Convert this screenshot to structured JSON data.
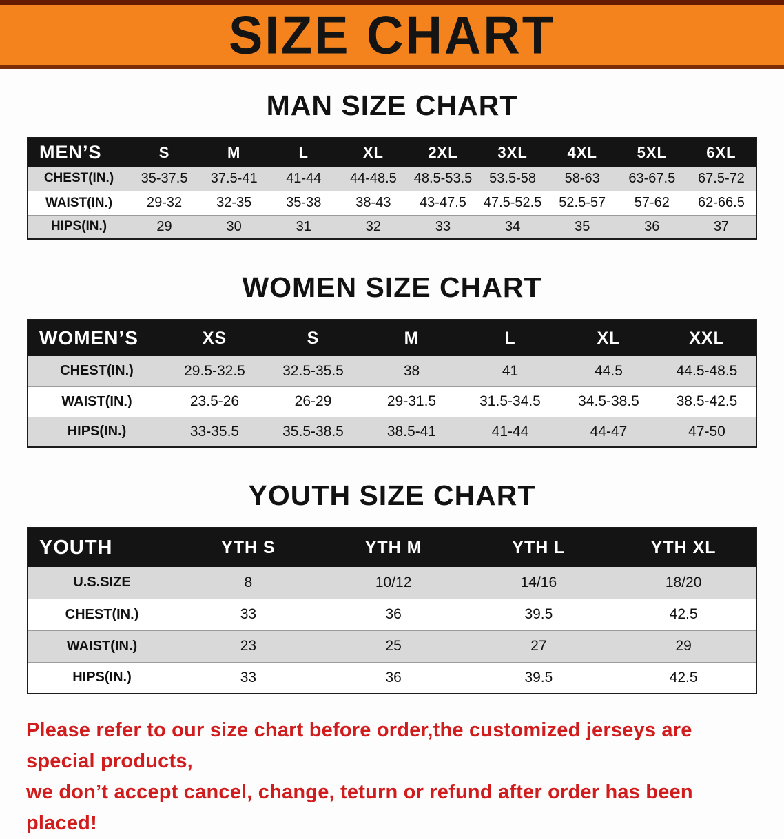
{
  "banner": {
    "title": "SIZE CHART"
  },
  "colors": {
    "banner_orange": "#f5831d",
    "banner_edge_top": "#671b03",
    "banner_edge_bottom": "#7c2c06",
    "header_black": "#141414",
    "row_gray": "#d9d9d9",
    "note_red": "#d01c1c"
  },
  "sections": [
    {
      "id": "men",
      "heading": "MAN SIZE CHART",
      "table": {
        "header": [
          "MEN’S",
          "S",
          "M",
          "L",
          "XL",
          "2XL",
          "3XL",
          "4XL",
          "5XL",
          "6XL"
        ],
        "rows": [
          [
            "CHEST(IN.)",
            "35-37.5",
            "37.5-41",
            "41-44",
            "44-48.5",
            "48.5-53.5",
            "53.5-58",
            "58-63",
            "63-67.5",
            "67.5-72"
          ],
          [
            "WAIST(IN.)",
            "29-32",
            "32-35",
            "35-38",
            "38-43",
            "43-47.5",
            "47.5-52.5",
            "52.5-57",
            "57-62",
            "62-66.5"
          ],
          [
            "HIPS(IN.)",
            "29",
            "30",
            "31",
            "32",
            "33",
            "34",
            "35",
            "36",
            "37"
          ]
        ]
      }
    },
    {
      "id": "women",
      "heading": "WOMEN SIZE CHART",
      "table": {
        "header": [
          "WOMEN’S",
          "XS",
          "S",
          "M",
          "L",
          "XL",
          "XXL"
        ],
        "rows": [
          [
            "CHEST(IN.)",
            "29.5-32.5",
            "32.5-35.5",
            "38",
            "41",
            "44.5",
            "44.5-48.5"
          ],
          [
            "WAIST(IN.)",
            "23.5-26",
            "26-29",
            "29-31.5",
            "31.5-34.5",
            "34.5-38.5",
            "38.5-42.5"
          ],
          [
            "HIPS(IN.)",
            "33-35.5",
            "35.5-38.5",
            "38.5-41",
            "41-44",
            "44-47",
            "47-50"
          ]
        ]
      }
    },
    {
      "id": "youth",
      "heading": "YOUTH SIZE CHART",
      "table": {
        "header": [
          "YOUTH",
          "YTH S",
          "YTH M",
          "YTH L",
          "YTH XL"
        ],
        "rows": [
          [
            "U.S.SIZE",
            "8",
            "10/12",
            "14/16",
            "18/20"
          ],
          [
            "CHEST(IN.)",
            "33",
            "36",
            "39.5",
            "42.5"
          ],
          [
            "WAIST(IN.)",
            "23",
            "25",
            "27",
            "29"
          ],
          [
            "HIPS(IN.)",
            "33",
            "36",
            "39.5",
            "42.5"
          ]
        ]
      }
    }
  ],
  "footer": {
    "line1": "Please refer to our size chart before order,the customized jerseys are special products,",
    "line2": "we don’t accept cancel, change, teturn or refund after order has been placed!"
  }
}
